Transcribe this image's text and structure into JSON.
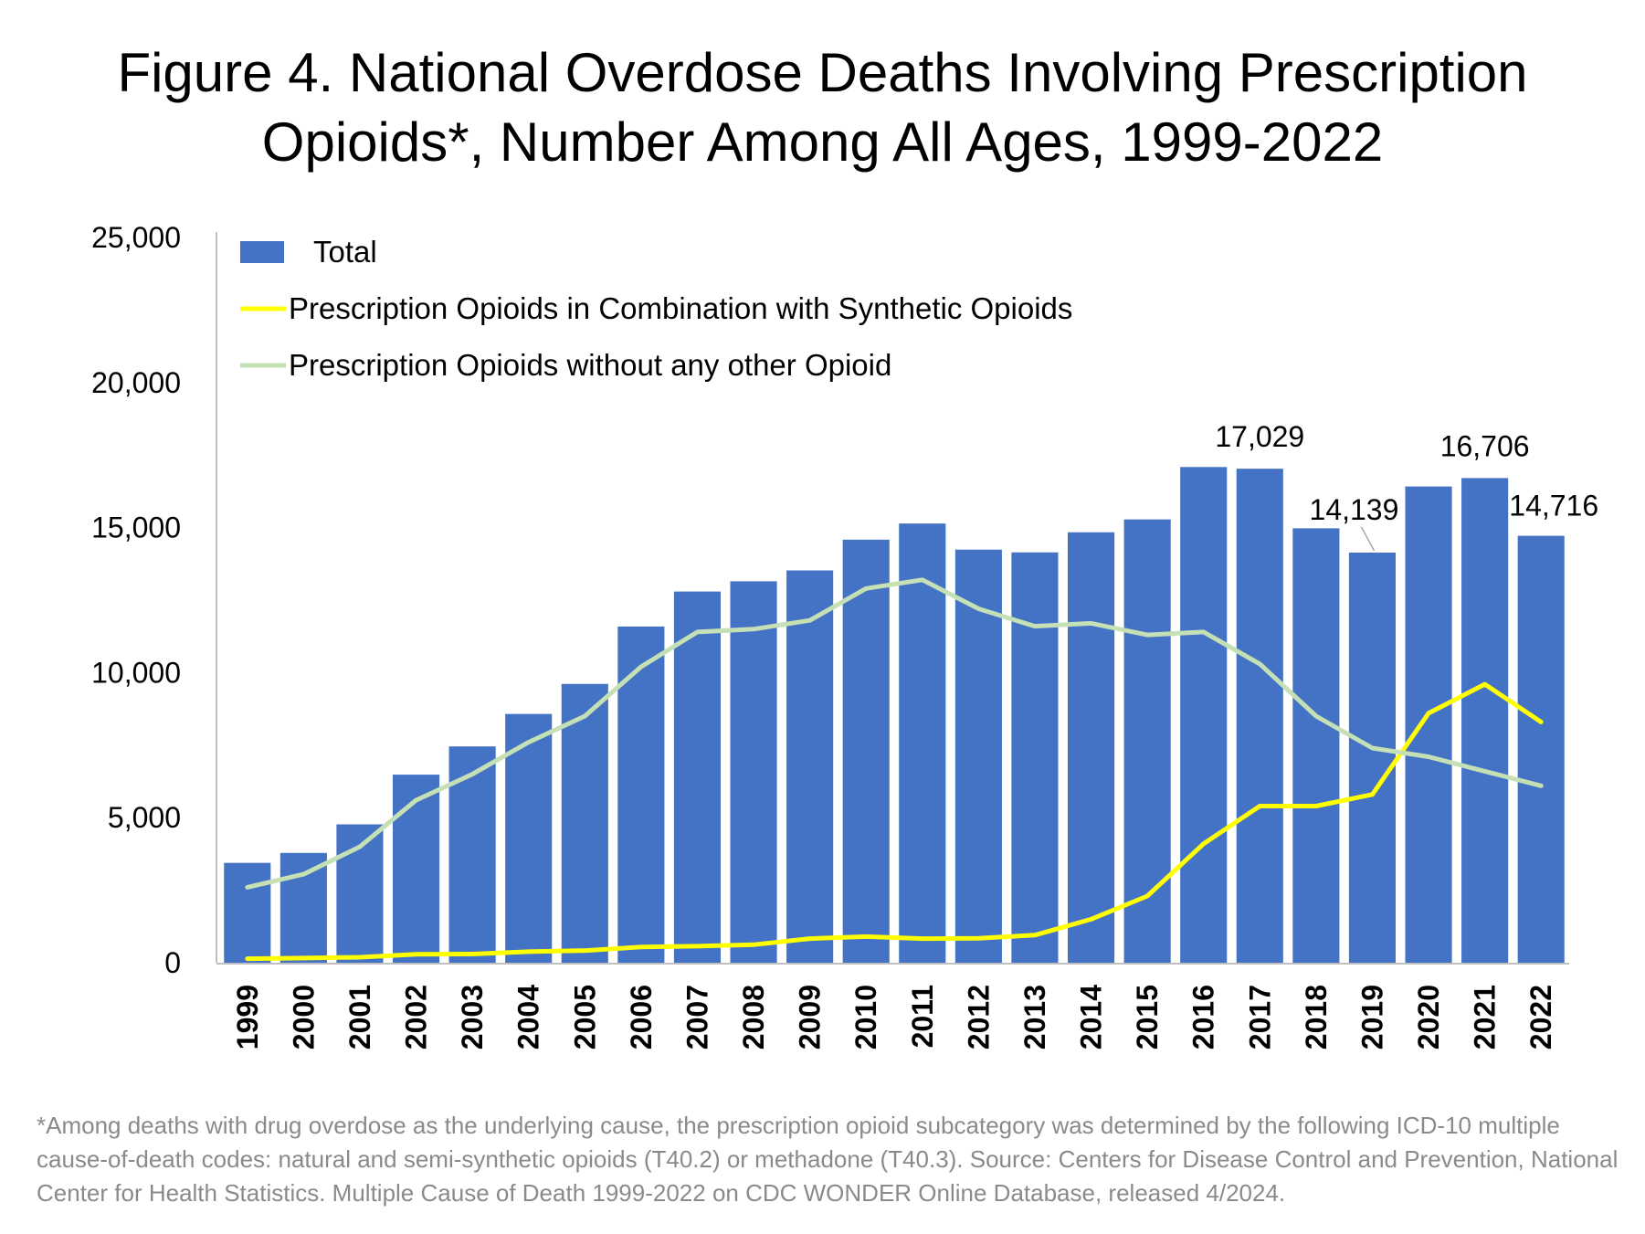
{
  "title": {
    "line1": "Figure 4. National Overdose Deaths Involving Prescription",
    "line2": "Opioids*, Number Among All Ages, 1999-2022"
  },
  "footnote": "*Among deaths with drug overdose as the underlying cause, the prescription opioid subcategory was determined by the following ICD-10 multiple cause-of-death codes: natural and semi-synthetic opioids (T40.2) or methadone (T40.3). Source: Centers for Disease Control and Prevention, National Center for Health Statistics. Multiple Cause of Death 1999-2022 on CDC WONDER Online Database, released 4/2024.",
  "colors": {
    "bar": "#4472C4",
    "combination_line": "#FFFF00",
    "without_line": "#C5E0B4",
    "axis": "#BFBFBF",
    "footnote_text": "#8A8A8A"
  },
  "chart_data": {
    "type": "bar",
    "title": "Figure 4. National Overdose Deaths Involving Prescription Opioids*, Number Among All Ages, 1999-2022",
    "xlabel": "",
    "ylabel": "",
    "ylim": [
      0,
      25000
    ],
    "yticks": [
      0,
      5000,
      10000,
      15000,
      20000,
      25000
    ],
    "ytick_labels": [
      "0",
      "5,000",
      "10,000",
      "15,000",
      "20,000",
      "25,000"
    ],
    "grid": false,
    "legend_position": "top-left",
    "categories": [
      "1999",
      "2000",
      "2001",
      "2002",
      "2003",
      "2004",
      "2005",
      "2006",
      "2007",
      "2008",
      "2009",
      "2010",
      "2011",
      "2012",
      "2013",
      "2014",
      "2015",
      "2016",
      "2017",
      "2018",
      "2019",
      "2020",
      "2021",
      "2022"
    ],
    "series": [
      {
        "name": "Total",
        "type": "bar",
        "color": "#4472C4",
        "values": [
          3442,
          3785,
          4770,
          6483,
          7456,
          8575,
          9612,
          11589,
          12796,
          13149,
          13523,
          14583,
          15140,
          14240,
          14145,
          14838,
          15281,
          17087,
          17029,
          14975,
          14139,
          16416,
          16706,
          14716
        ]
      },
      {
        "name": "Prescription Opioids in Combination with Synthetic Opioids",
        "type": "line",
        "color": "#FFFF00",
        "values": [
          140,
          160,
          190,
          290,
          300,
          380,
          420,
          540,
          570,
          620,
          830,
          900,
          830,
          840,
          950,
          1500,
          2300,
          4100,
          5400,
          5400,
          5800,
          8600,
          9600,
          8300
        ]
      },
      {
        "name": "Prescription Opioids without any other Opioid",
        "type": "line",
        "color": "#C5E0B4",
        "values": [
          2600,
          3050,
          4000,
          5600,
          6500,
          7600,
          8500,
          10200,
          11400,
          11500,
          11800,
          12900,
          13200,
          12200,
          11600,
          11700,
          11300,
          11400,
          10300,
          8500,
          7400,
          7100,
          6600,
          6100
        ]
      }
    ],
    "data_labels": [
      {
        "category": "2017",
        "text": "17,029"
      },
      {
        "category": "2019",
        "text": "14,139"
      },
      {
        "category": "2021",
        "text": "16,706"
      },
      {
        "category": "2022",
        "text": "14,716"
      }
    ]
  }
}
